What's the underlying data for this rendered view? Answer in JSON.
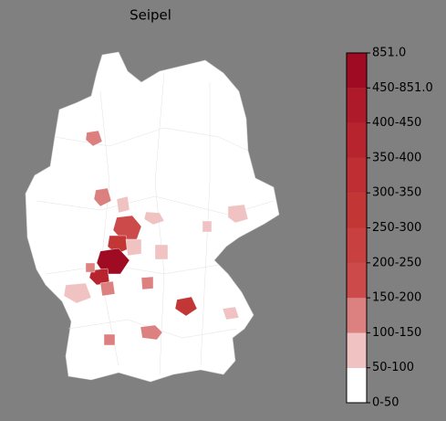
{
  "title": "Seipel",
  "legend": {
    "labels": [
      "0-50",
      "50-100",
      "100-150",
      "150-200",
      "200-250",
      "250-300",
      "300-350",
      "350-400",
      "400-450",
      "450-851.0",
      "851.0"
    ],
    "colors": [
      "#ffffff",
      "#f0c2c2",
      "#dc8080",
      "#cc4a4a",
      "#c8403f",
      "#c33636",
      "#be2e32",
      "#b8242d",
      "#ae1a29",
      "#9e0b22"
    ]
  }
}
